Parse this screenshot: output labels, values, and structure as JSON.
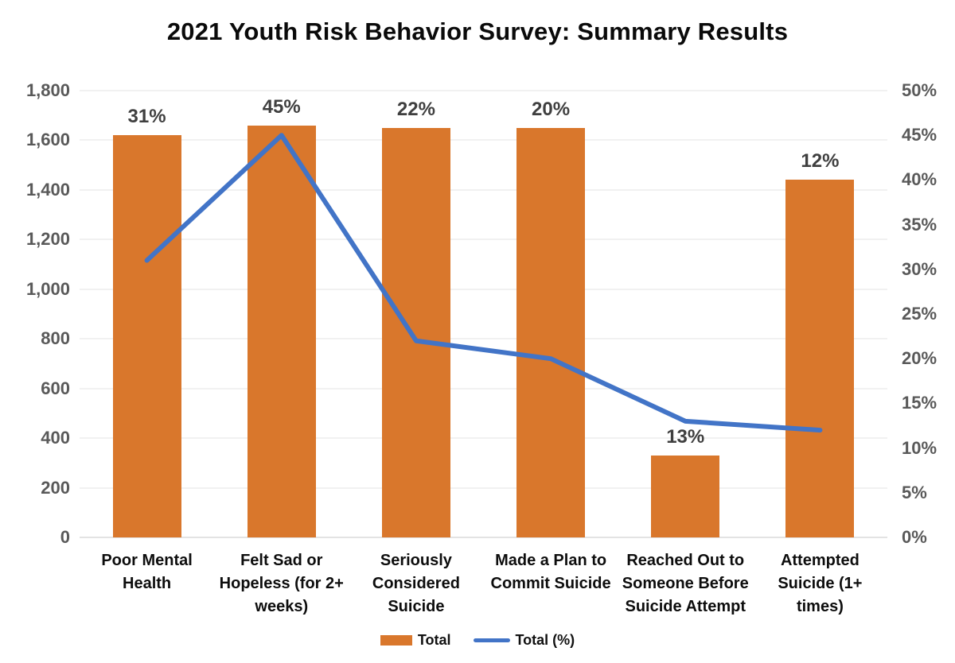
{
  "title": "2021 Youth Risk Behavior Survey: Summary Results",
  "colors": {
    "bar": "#D9772C",
    "line": "#4274C7",
    "axis_text": "#595959",
    "data_label_text": "#3F3F3F",
    "title_text": "#0A0A0A",
    "gridline": "#F1F1F1",
    "baseline": "#E3E3E3"
  },
  "legend": {
    "items": [
      {
        "swatch": "bar",
        "label": "Total"
      },
      {
        "swatch": "line",
        "label": "Total (%)"
      }
    ]
  },
  "chart_data": {
    "type": "bar",
    "subtype": "combo bar+line, dual axis",
    "title": "2021 Youth Risk Behavior Survey: Summary Results",
    "categories": [
      "Poor Mental Health",
      "Felt Sad or Hopeless (for 2+ weeks)",
      "Seriously Considered Suicide",
      "Made a Plan to Commit Suicide",
      "Reached Out to Someone Before Suicide Attempt",
      "Attempted Suicide (1+ times)"
    ],
    "series": [
      {
        "name": "Total",
        "type": "bar",
        "axis": "left",
        "values": [
          1620,
          1660,
          1650,
          1650,
          330,
          1440
        ]
      },
      {
        "name": "Total (%)",
        "type": "line",
        "axis": "right",
        "values": [
          31,
          45,
          22,
          20,
          13,
          12
        ],
        "data_labels": [
          "31%",
          "45%",
          "22%",
          "20%",
          "13%",
          "12%"
        ]
      }
    ],
    "left_axis": {
      "ticks": [
        "1,800",
        "1,600",
        "1,400",
        "1,200",
        "1,000",
        "800",
        "600",
        "400",
        "200",
        "0"
      ],
      "min": 0,
      "max": 1800
    },
    "right_axis": {
      "ticks": [
        "50%",
        "45%",
        "40%",
        "35%",
        "30%",
        "25%",
        "20%",
        "15%",
        "10%",
        "5%",
        "0%"
      ],
      "min": 0,
      "max": 50
    },
    "grid": true,
    "legend_position": "bottom",
    "xlabel": "",
    "ylabel": ""
  }
}
